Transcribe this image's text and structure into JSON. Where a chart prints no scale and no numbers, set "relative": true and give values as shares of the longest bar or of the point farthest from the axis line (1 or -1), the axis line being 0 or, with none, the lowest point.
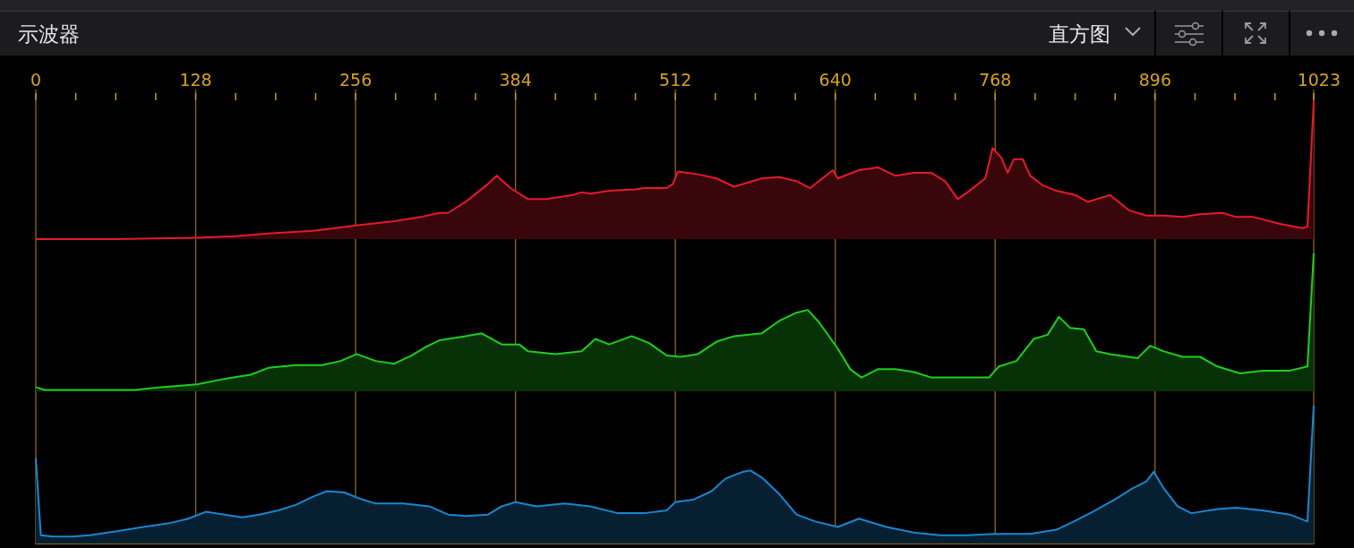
{
  "chart_data": [
    {
      "type": "area",
      "relative": true,
      "title": "示波器",
      "subtitle": "直方图",
      "color": "#e8192c",
      "grid": "x",
      "xlim": [
        0,
        1023
      ],
      "xticks": [
        0,
        {
          "value": 32,
          "label": null
        },
        {
          "value": 64,
          "label": null
        },
        {
          "value": 96,
          "label": null
        },
        128,
        {
          "value": 160,
          "label": null
        },
        {
          "value": 192,
          "label": null
        },
        {
          "value": 224,
          "label": null
        },
        256,
        {
          "value": 288,
          "label": null
        },
        {
          "value": 320,
          "label": null
        },
        {
          "value": 352,
          "label": null
        },
        384,
        {
          "value": 416,
          "label": null
        },
        {
          "value": 448,
          "label": null
        },
        {
          "value": 480,
          "label": null
        },
        512,
        {
          "value": 544,
          "label": null
        },
        {
          "value": 576,
          "label": null
        },
        {
          "value": 608,
          "label": null
        },
        640,
        {
          "value": 672,
          "label": null
        },
        {
          "value": 704,
          "label": null
        },
        {
          "value": 736,
          "label": null
        },
        768,
        {
          "value": 800,
          "label": null
        },
        {
          "value": 832,
          "label": null
        },
        {
          "value": 864,
          "label": null
        },
        896,
        {
          "value": 928,
          "label": null
        },
        {
          "value": 960,
          "label": null
        },
        {
          "value": 992,
          "label": null
        },
        1023
      ],
      "x": [
        0,
        65,
        129,
        158,
        186,
        222,
        258,
        287,
        308,
        323,
        330,
        344,
        362,
        369,
        380,
        394,
        409,
        430,
        437,
        444,
        459,
        480,
        487,
        505,
        510,
        514,
        530,
        545,
        559,
        581,
        595,
        609,
        620,
        638,
        642,
        659,
        674,
        688,
        703,
        717,
        728,
        738,
        746,
        760,
        766,
        773,
        778,
        783,
        790,
        796,
        806,
        817,
        832,
        842,
        860,
        875,
        889,
        903,
        918,
        932,
        950,
        961,
        975,
        996,
        1014,
        1018,
        1023
      ],
      "values": [
        0,
        0,
        0.01,
        0.02,
        0.04,
        0.06,
        0.1,
        0.13,
        0.16,
        0.19,
        0.19,
        0.27,
        0.4,
        0.46,
        0.37,
        0.29,
        0.29,
        0.32,
        0.34,
        0.33,
        0.35,
        0.36,
        0.37,
        0.37,
        0.4,
        0.49,
        0.47,
        0.44,
        0.38,
        0.44,
        0.45,
        0.42,
        0.37,
        0.5,
        0.44,
        0.5,
        0.52,
        0.46,
        0.48,
        0.48,
        0.42,
        0.29,
        0.34,
        0.44,
        0.66,
        0.59,
        0.48,
        0.58,
        0.58,
        0.46,
        0.39,
        0.35,
        0.32,
        0.27,
        0.32,
        0.21,
        0.17,
        0.17,
        0.16,
        0.18,
        0.19,
        0.16,
        0.16,
        0.11,
        0.08,
        0.09,
        1
      ]
    },
    {
      "type": "area",
      "relative": true,
      "color": "#1ecf1e",
      "grid": "x",
      "xlim": [
        0,
        1023
      ],
      "xticks": [
        0,
        128,
        256,
        384,
        512,
        640,
        768,
        896,
        1023
      ],
      "tick_labels": false,
      "x": [
        0,
        7,
        43,
        79,
        100,
        129,
        151,
        172,
        186,
        208,
        229,
        244,
        257,
        272,
        287,
        301,
        312,
        323,
        344,
        357,
        373,
        387,
        394,
        416,
        437,
        448,
        459,
        477,
        491,
        505,
        516,
        530,
        545,
        559,
        581,
        595,
        609,
        618,
        627,
        642,
        652,
        661,
        674,
        688,
        703,
        717,
        731,
        753,
        763,
        771,
        785,
        799,
        810,
        819,
        828,
        839,
        849,
        860,
        882,
        892,
        903,
        918,
        932,
        946,
        964,
        982,
        1004,
        1018,
        1023
      ],
      "values": [
        0.03,
        0.01,
        0.01,
        0.01,
        0.03,
        0.05,
        0.09,
        0.12,
        0.17,
        0.19,
        0.19,
        0.22,
        0.27,
        0.22,
        0.2,
        0.26,
        0.32,
        0.37,
        0.4,
        0.42,
        0.34,
        0.34,
        0.29,
        0.27,
        0.29,
        0.38,
        0.34,
        0.4,
        0.35,
        0.26,
        0.25,
        0.27,
        0.36,
        0.4,
        0.42,
        0.51,
        0.57,
        0.59,
        0.5,
        0.31,
        0.16,
        0.1,
        0.16,
        0.16,
        0.14,
        0.1,
        0.1,
        0.1,
        0.1,
        0.18,
        0.22,
        0.38,
        0.41,
        0.54,
        0.46,
        0.45,
        0.29,
        0.27,
        0.24,
        0.33,
        0.29,
        0.25,
        0.25,
        0.18,
        0.13,
        0.15,
        0.15,
        0.18,
        1
      ]
    },
    {
      "type": "area",
      "relative": true,
      "color": "#1a86d0",
      "grid": "x",
      "xlim": [
        0,
        1023
      ],
      "xticks": [
        0,
        128,
        256,
        384,
        512,
        640,
        768,
        896,
        1023
      ],
      "tick_labels": false,
      "x": [
        0,
        4,
        14,
        29,
        43,
        65,
        86,
        108,
        122,
        136,
        151,
        165,
        179,
        194,
        208,
        222,
        233,
        247,
        258,
        272,
        294,
        315,
        330,
        344,
        362,
        373,
        384,
        401,
        423,
        444,
        466,
        487,
        505,
        512,
        527,
        541,
        552,
        566,
        572,
        581,
        595,
        609,
        624,
        642,
        659,
        681,
        703,
        724,
        746,
        767,
        796,
        817,
        831,
        846,
        864,
        878,
        889,
        895,
        903,
        914,
        925,
        946,
        961,
        982,
        1004,
        1018,
        1023
      ],
      "values": [
        0.62,
        0.06,
        0.05,
        0.05,
        0.06,
        0.09,
        0.12,
        0.15,
        0.18,
        0.23,
        0.21,
        0.19,
        0.21,
        0.24,
        0.28,
        0.34,
        0.38,
        0.37,
        0.33,
        0.29,
        0.29,
        0.27,
        0.21,
        0.2,
        0.21,
        0.27,
        0.3,
        0.27,
        0.29,
        0.27,
        0.22,
        0.22,
        0.24,
        0.3,
        0.32,
        0.38,
        0.47,
        0.52,
        0.53,
        0.48,
        0.36,
        0.21,
        0.16,
        0.12,
        0.18,
        0.12,
        0.08,
        0.06,
        0.06,
        0.07,
        0.07,
        0.1,
        0.16,
        0.23,
        0.32,
        0.4,
        0.45,
        0.52,
        0.4,
        0.27,
        0.22,
        0.25,
        0.26,
        0.24,
        0.21,
        0.16,
        1
      ]
    }
  ]
}
